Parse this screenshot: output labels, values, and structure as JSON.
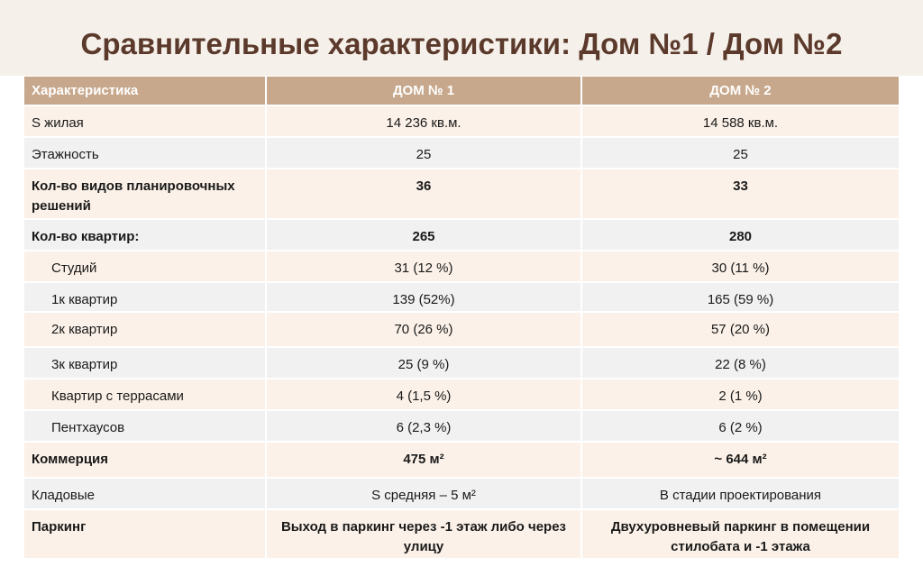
{
  "header": {
    "title": "Сравнительные характеристики: Дом №1 / Дом №2"
  },
  "table": {
    "columns": [
      "Характеристика",
      "ДОМ № 1",
      "ДОМ № 2"
    ],
    "rows": [
      {
        "cells": [
          "S жилая",
          "14 236 кв.м.",
          "14 588 кв.м."
        ],
        "bold": false,
        "indent": false
      },
      {
        "cells": [
          "Этажность",
          "25",
          "25"
        ],
        "bold": false,
        "indent": false
      },
      {
        "cells": [
          "Кол-во видов планировочных решений",
          "36",
          "33"
        ],
        "bold": true,
        "indent": false
      },
      {
        "cells": [
          "Кол-во квартир:",
          "265",
          "280"
        ],
        "bold": true,
        "indent": false
      },
      {
        "cells": [
          "Студий",
          "31 (12 %)",
          "30 (11 %)"
        ],
        "bold": false,
        "indent": true
      },
      {
        "cells": [
          "1к квартир",
          "139 (52%)",
          "165 (59 %)"
        ],
        "bold": false,
        "indent": true
      },
      {
        "cells": [
          "2к квартир",
          "70 (26 %)",
          "57 (20 %)"
        ],
        "bold": false,
        "indent": true
      },
      {
        "cells": [
          "3к квартир",
          "25 (9 %)",
          "22 (8 %)"
        ],
        "bold": false,
        "indent": true
      },
      {
        "cells": [
          "Квартир с террасами",
          "4 (1,5 %)",
          "2 (1 %)"
        ],
        "bold": false,
        "indent": true
      },
      {
        "cells": [
          "Пентхаусов",
          "6 (2,3 %)",
          "6 (2 %)"
        ],
        "bold": false,
        "indent": true
      },
      {
        "cells": [
          "Коммерция",
          "475 м²",
          "~ 644 м²"
        ],
        "bold": true,
        "indent": false
      },
      {
        "cells": [
          "Кладовые",
          "S средняя – 5 м²",
          "В стадии проектирования"
        ],
        "bold": false,
        "indent": false
      },
      {
        "cells": [
          "Паркинг",
          "Выход в паркинг через -1 этаж либо через улицу",
          "Двухуровневый паркинг в помещении стилобата и -1 этажа"
        ],
        "bold": true,
        "indent": false
      }
    ]
  }
}
